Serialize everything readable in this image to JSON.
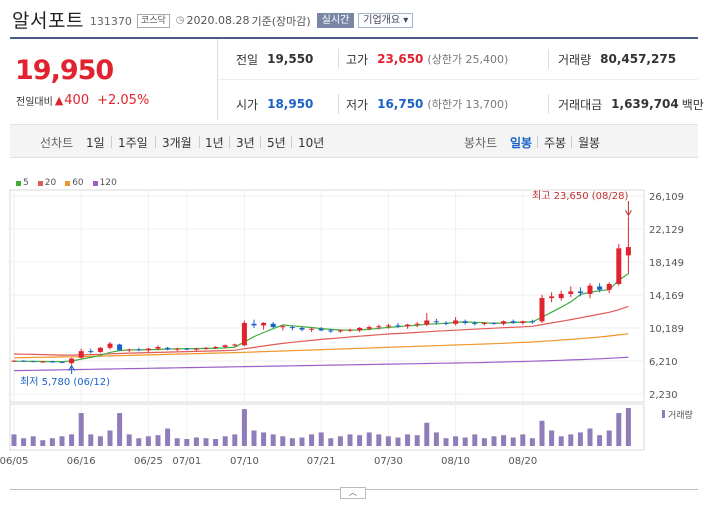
{
  "header": {
    "name": "알서포트",
    "code": "131370",
    "market": "코스닥",
    "date": "2020.08.28",
    "basis": "기준(장마감)",
    "realtime": "실시간",
    "corp_button": "기업개요"
  },
  "price": {
    "current": "19,950",
    "change_label": "전일대비",
    "change_arrow": "▲",
    "change": "400",
    "change_pct": "+2.05%"
  },
  "stats": {
    "prev_close": {
      "label": "전일",
      "value": "19,550"
    },
    "high": {
      "label": "고가",
      "value": "23,650",
      "sub": "(상한가 25,400)"
    },
    "volume": {
      "label": "거래량",
      "value": "80,457,275"
    },
    "open": {
      "label": "시가",
      "value": "18,950"
    },
    "low": {
      "label": "저가",
      "value": "16,750",
      "sub": "(하한가 13,700)"
    },
    "amount": {
      "label": "거래대금",
      "value": "1,639,704",
      "unit": "백만"
    }
  },
  "toolbar": {
    "line_label": "선차트",
    "line_items": [
      "1일",
      "1주일",
      "3개월",
      "1년",
      "3년",
      "5년",
      "10년"
    ],
    "candle_label": "봉차트",
    "candle_items": [
      "일봉",
      "주봉",
      "월봉"
    ]
  },
  "colors": {
    "up": "#e0232e",
    "down": "#1a62c8",
    "ma5": "#3fae3a",
    "ma20": "#e05a58",
    "ma60": "#f0962a",
    "ma120": "#9a60c8",
    "volume": "#8f7dba"
  },
  "chart_data": {
    "type": "candlestick",
    "legend": [
      "5",
      "20",
      "60",
      "120"
    ],
    "y_ticks": [
      "26,109",
      "22,129",
      "18,149",
      "14,169",
      "10,189",
      "6,210",
      "2,230"
    ],
    "y_range": [
      2230,
      26109
    ],
    "x_labels": [
      "06/05",
      "06/16",
      "06/25",
      "07/01",
      "07/10",
      "07/21",
      "07/30",
      "08/10",
      "08/20"
    ],
    "x_label_index": [
      0,
      7,
      14,
      18,
      24,
      32,
      39,
      46,
      53
    ],
    "high_annotation": "최고 23,650 (08/28)",
    "low_annotation": "최저 5,780 (06/12)",
    "volume_label": "거래량",
    "candles": [
      [
        6200,
        6300,
        6100,
        6250
      ],
      [
        6250,
        6300,
        6150,
        6200
      ],
      [
        6200,
        6250,
        6050,
        6100
      ],
      [
        6100,
        6200,
        6000,
        6150
      ],
      [
        6150,
        6250,
        6050,
        6100
      ],
      [
        6100,
        6150,
        5950,
        6050
      ],
      [
        5950,
        6600,
        5780,
        6500
      ],
      [
        6600,
        7700,
        6500,
        7400
      ],
      [
        7400,
        7700,
        7100,
        7300
      ],
      [
        7300,
        7900,
        7200,
        7800
      ],
      [
        7800,
        8500,
        7600,
        8300
      ],
      [
        8200,
        8300,
        7600,
        7500
      ],
      [
        7500,
        7700,
        7300,
        7600
      ],
      [
        7600,
        7800,
        7400,
        7500
      ],
      [
        7500,
        7800,
        7300,
        7700
      ],
      [
        7700,
        8100,
        7500,
        7900
      ],
      [
        7800,
        7900,
        7500,
        7600
      ],
      [
        7600,
        7800,
        7400,
        7700
      ],
      [
        7700,
        7800,
        7500,
        7600
      ],
      [
        7600,
        7800,
        7450,
        7700
      ],
      [
        7700,
        7900,
        7550,
        7800
      ],
      [
        7800,
        8000,
        7650,
        7900
      ],
      [
        7900,
        8200,
        7700,
        8100
      ],
      [
        8100,
        8300,
        7900,
        8200
      ],
      [
        8100,
        11100,
        8000,
        10800
      ],
      [
        10700,
        11200,
        10200,
        10500
      ],
      [
        10500,
        10900,
        10000,
        10800
      ],
      [
        10700,
        10900,
        10200,
        10300
      ],
      [
        10300,
        10600,
        9900,
        10400
      ],
      [
        10300,
        10500,
        9900,
        10200
      ],
      [
        10200,
        10400,
        9800,
        10000
      ],
      [
        10000,
        10200,
        9700,
        10100
      ],
      [
        10100,
        10300,
        9800,
        9900
      ],
      [
        9900,
        10100,
        9600,
        9800
      ],
      [
        9800,
        10000,
        9600,
        9900
      ],
      [
        9900,
        10100,
        9700,
        10000
      ],
      [
        9900,
        10300,
        9700,
        10200
      ],
      [
        10100,
        10500,
        9900,
        10300
      ],
      [
        10300,
        10600,
        10000,
        10400
      ],
      [
        10400,
        10700,
        10100,
        10500
      ],
      [
        10500,
        10800,
        10200,
        10400
      ],
      [
        10400,
        10700,
        10100,
        10600
      ],
      [
        10600,
        10900,
        10300,
        10700
      ],
      [
        10600,
        12000,
        10400,
        11100
      ],
      [
        11000,
        11300,
        10600,
        10900
      ],
      [
        10800,
        11000,
        10500,
        10700
      ],
      [
        10700,
        11500,
        10500,
        11100
      ],
      [
        11000,
        11200,
        10600,
        10800
      ],
      [
        10800,
        11000,
        10500,
        10700
      ],
      [
        10700,
        10900,
        10500,
        10800
      ],
      [
        10800,
        10900,
        10600,
        10700
      ],
      [
        10700,
        11100,
        10500,
        11000
      ],
      [
        11000,
        11200,
        10700,
        10800
      ],
      [
        10800,
        11100,
        10600,
        11000
      ],
      [
        11000,
        11200,
        10700,
        10900
      ],
      [
        11000,
        14200,
        10800,
        13800
      ],
      [
        13800,
        14500,
        13300,
        14000
      ],
      [
        13800,
        14700,
        13500,
        14300
      ],
      [
        14300,
        15200,
        13900,
        14600
      ],
      [
        14600,
        15100,
        14000,
        14400
      ],
      [
        14300,
        15600,
        13800,
        15300
      ],
      [
        15200,
        15600,
        14500,
        14800
      ],
      [
        14800,
        15700,
        14400,
        15500
      ],
      [
        15500,
        20300,
        15300,
        19800
      ],
      [
        18950,
        23650,
        16750,
        19950
      ]
    ],
    "volume": [
      30,
      20,
      25,
      15,
      20,
      25,
      30,
      85,
      30,
      25,
      40,
      85,
      30,
      20,
      25,
      28,
      45,
      20,
      18,
      22,
      20,
      18,
      25,
      30,
      95,
      40,
      35,
      30,
      25,
      20,
      22,
      30,
      35,
      20,
      25,
      30,
      28,
      35,
      30,
      25,
      22,
      30,
      28,
      60,
      35,
      20,
      25,
      22,
      30,
      20,
      25,
      28,
      22,
      30,
      20,
      65,
      40,
      25,
      30,
      35,
      45,
      28,
      40,
      85,
      98
    ],
    "ma5": [
      6180,
      6170,
      6160,
      6150,
      6140,
      6120,
      6210,
      6430,
      6650,
      6900,
      7250,
      7450,
      7550,
      7550,
      7580,
      7600,
      7660,
      7680,
      7700,
      7700,
      7730,
      7740,
      7790,
      7880,
      8500,
      9150,
      9650,
      10100,
      10550,
      10450,
      10350,
      10250,
      10120,
      10020,
      9950,
      9940,
      9950,
      10030,
      10150,
      10260,
      10350,
      10450,
      10520,
      10650,
      10700,
      10760,
      10870,
      10920,
      10880,
      10830,
      10750,
      10800,
      10850,
      10900,
      10920,
      11500,
      12100,
      12700,
      13340,
      14220,
      14520,
      14680,
      14820,
      15960,
      16750
    ],
    "ma20": [
      7050,
      7030,
      7000,
      6980,
      6950,
      6920,
      6920,
      6950,
      6980,
      7020,
      7080,
      7120,
      7160,
      7190,
      7220,
      7250,
      7280,
      7310,
      7340,
      7370,
      7400,
      7430,
      7470,
      7510,
      7680,
      7850,
      8020,
      8190,
      8330,
      8460,
      8580,
      8700,
      8810,
      8910,
      9010,
      9110,
      9200,
      9290,
      9380,
      9470,
      9530,
      9590,
      9660,
      9730,
      9800,
      9860,
      9920,
      9980,
      10040,
      10100,
      10160,
      10220,
      10280,
      10340,
      10400,
      10600,
      10800,
      11000,
      11200,
      11420,
      11640,
      11860,
      12080,
      12400,
      12800
    ],
    "ma60": [
      6600,
      6620,
      6640,
      6660,
      6680,
      6700,
      6720,
      6740,
      6770,
      6800,
      6830,
      6860,
      6890,
      6920,
      6950,
      6980,
      7010,
      7040,
      7070,
      7100,
      7130,
      7160,
      7190,
      7220,
      7260,
      7300,
      7340,
      7380,
      7420,
      7460,
      7500,
      7540,
      7580,
      7620,
      7660,
      7700,
      7740,
      7780,
      7820,
      7860,
      7900,
      7940,
      7980,
      8020,
      8060,
      8100,
      8140,
      8180,
      8220,
      8260,
      8300,
      8350,
      8400,
      8450,
      8500,
      8580,
      8660,
      8740,
      8820,
      8900,
      9000,
      9100,
      9220,
      9360,
      9500
    ],
    "ma120": [
      5050,
      5070,
      5090,
      5110,
      5130,
      5150,
      5170,
      5190,
      5210,
      5230,
      5250,
      5270,
      5290,
      5310,
      5330,
      5350,
      5370,
      5390,
      5410,
      5430,
      5450,
      5470,
      5490,
      5510,
      5530,
      5550,
      5570,
      5590,
      5610,
      5630,
      5650,
      5670,
      5690,
      5710,
      5730,
      5750,
      5770,
      5790,
      5810,
      5830,
      5850,
      5870,
      5890,
      5910,
      5930,
      5950,
      5970,
      5990,
      6010,
      6030,
      6060,
      6090,
      6120,
      6150,
      6180,
      6220,
      6260,
      6300,
      6340,
      6380,
      6430,
      6480,
      6530,
      6600,
      6680
    ]
  }
}
